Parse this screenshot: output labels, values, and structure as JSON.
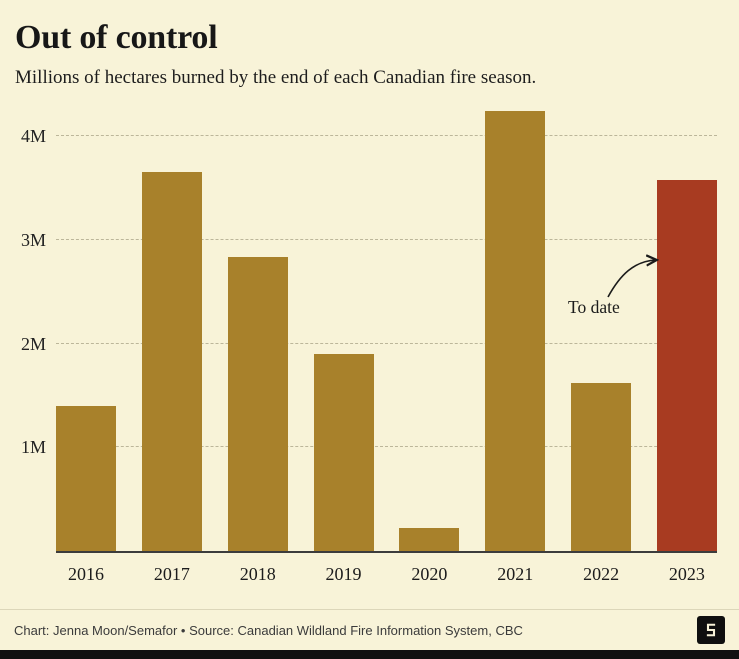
{
  "header": {
    "title": "Out of control",
    "subtitle": "Millions of hectares burned by the end of each Canadian fire season."
  },
  "chart_data": {
    "type": "bar",
    "title": "Out of control",
    "subtitle": "Millions of hectares burned by the end of each Canadian fire season.",
    "categories": [
      "2016",
      "2017",
      "2018",
      "2019",
      "2020",
      "2021",
      "2022",
      "2023"
    ],
    "values": [
      1.4,
      3.65,
      2.83,
      1.9,
      0.22,
      4.24,
      1.62,
      3.58
    ],
    "unit": "million hectares",
    "ylim": [
      0,
      4.3
    ],
    "yticks": [
      {
        "value": 1,
        "label": "1M"
      },
      {
        "value": 2,
        "label": "2M"
      },
      {
        "value": 3,
        "label": "3M"
      },
      {
        "value": 4,
        "label": "4M"
      }
    ],
    "xlabel": "",
    "ylabel": "",
    "grid": "horizontal-dashed",
    "legend": "none",
    "bar_color": "#a8812b",
    "highlight_color": "#a83b21",
    "highlight_index": 7,
    "annotation": {
      "text": "To date",
      "target": "2023"
    }
  },
  "footer": {
    "credit": "Chart: Jenna Moon/Semafor • Source: Canadian Wildland Fire Information System, CBC"
  },
  "colors": {
    "background": "#f8f3d8",
    "bar": "#a8812b",
    "highlight": "#a83b21",
    "text": "#171717",
    "gridline": "#bcb69a"
  }
}
